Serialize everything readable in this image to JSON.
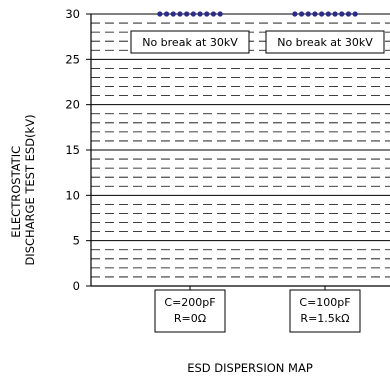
{
  "chart_data": {
    "type": "scatter",
    "title": "ESD DISPERSION MAP",
    "ylabel_lines": [
      "ELECTROSTATIC",
      "DISCHARGE TEST ESD(kV)"
    ],
    "ylim": [
      0,
      30
    ],
    "yticks": [
      0,
      5,
      10,
      15,
      20,
      25,
      30
    ],
    "grid": "dashed horizontal lines every 1 kV, solid lines every 5 kV",
    "categories": [
      {
        "lines": [
          "C=200pF",
          "R=0Ω"
        ]
      },
      {
        "lines": [
          "C=100pF",
          "R=1.5kΩ"
        ]
      }
    ],
    "series": [
      {
        "values": [
          30,
          30
        ],
        "points_per_category": 10,
        "color": "#2b2b8c"
      }
    ],
    "annotations": [
      {
        "category": 0,
        "text": "No break at 30kV"
      },
      {
        "category": 1,
        "text": "No break at 30kV"
      }
    ]
  }
}
